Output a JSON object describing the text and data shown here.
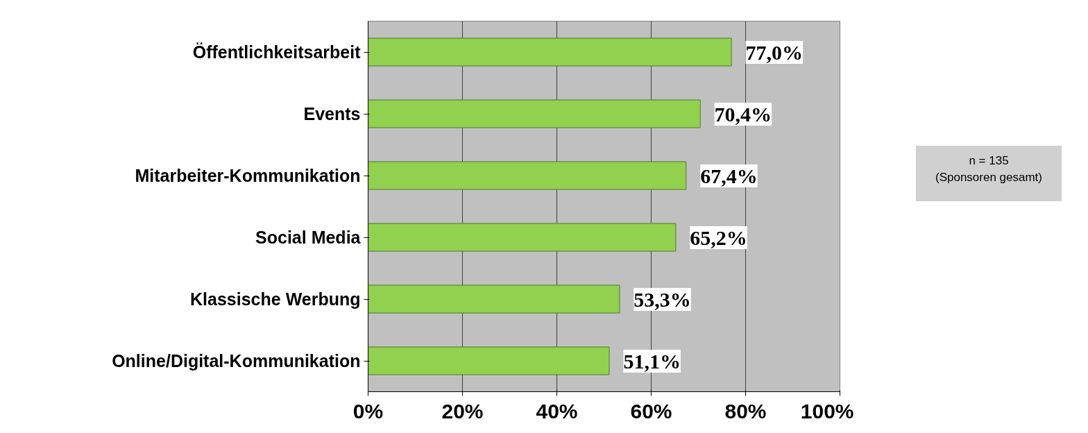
{
  "chart_data": {
    "type": "bar",
    "orientation": "horizontal",
    "categories": [
      "Öffentlichkeitsarbeit",
      "Events",
      "Mitarbeiter-Kommunikation",
      "Social Media",
      "Klassische Werbung",
      "Online/Digital-Kommunikation"
    ],
    "values": [
      77.0,
      70.4,
      67.4,
      65.2,
      53.3,
      51.1
    ],
    "value_labels": [
      "77,0%",
      "70,4%",
      "67,4%",
      "65,2%",
      "53,3%",
      "51,1%"
    ],
    "color": "#92d050",
    "xlim": [
      0,
      100
    ],
    "xticks": [
      {
        "value": 0,
        "label": "0%"
      },
      {
        "value": 20,
        "label": "20%"
      },
      {
        "value": 40,
        "label": "40%"
      },
      {
        "value": 60,
        "label": "60%"
      },
      {
        "value": 80,
        "label": "80%"
      },
      {
        "value": 100,
        "label": "100%"
      }
    ],
    "grid": "x",
    "annotations": [
      "n = 135\n(Sponsoren gesamt)"
    ]
  }
}
